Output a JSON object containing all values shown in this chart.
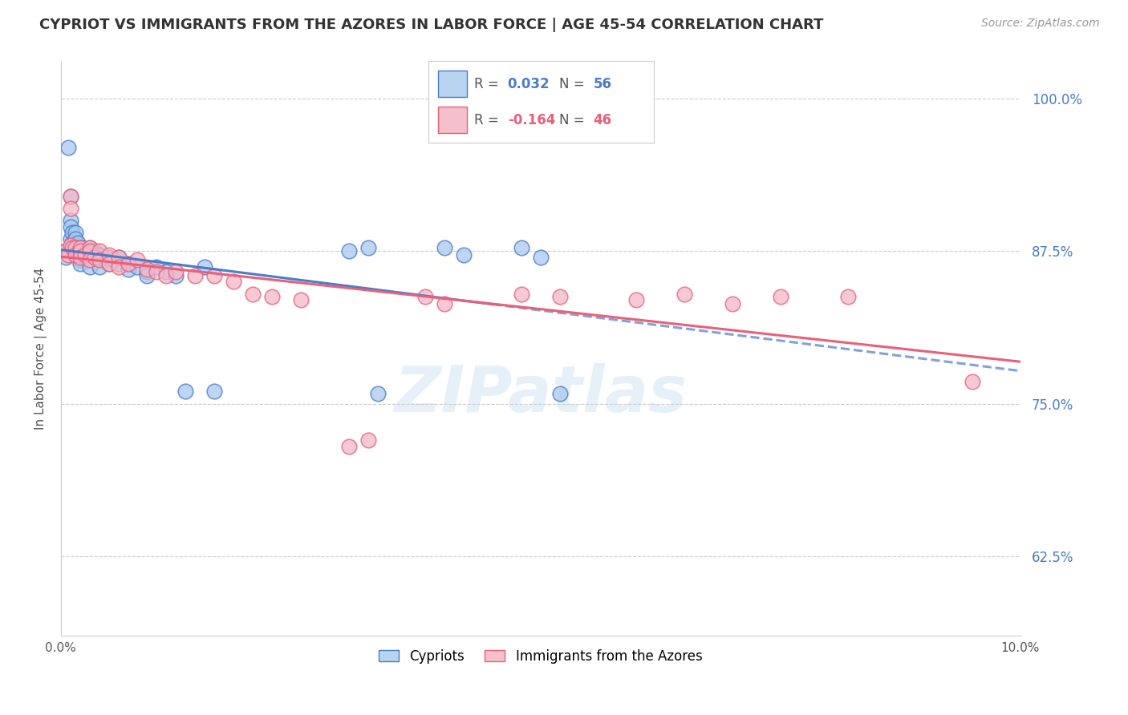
{
  "title": "CYPRIOT VS IMMIGRANTS FROM THE AZORES IN LABOR FORCE | AGE 45-54 CORRELATION CHART",
  "source_text": "Source: ZipAtlas.com",
  "ylabel": "In Labor Force | Age 45-54",
  "x_min": 0.0,
  "x_max": 0.1,
  "y_min": 0.56,
  "y_max": 1.03,
  "y_ticks": [
    0.625,
    0.75,
    0.875,
    1.0
  ],
  "y_tick_labels": [
    "62.5%",
    "75.0%",
    "87.5%",
    "100.0%"
  ],
  "x_ticks": [
    0.0,
    0.02,
    0.04,
    0.06,
    0.08,
    0.1
  ],
  "x_tick_labels": [
    "0.0%",
    "",
    "",
    "",
    "",
    "10.0%"
  ],
  "blue_color": "#a8c8f0",
  "pink_color": "#f5b8c8",
  "trend_blue": "#4a7cc7",
  "trend_pink": "#e8607a",
  "watermark": "ZIPatlas",
  "cypriots_x": [
    0.0005,
    0.0005,
    0.0008,
    0.001,
    0.001,
    0.001,
    0.001,
    0.0012,
    0.0012,
    0.0015,
    0.0015,
    0.0015,
    0.0018,
    0.002,
    0.002,
    0.002,
    0.002,
    0.002,
    0.0022,
    0.0025,
    0.0025,
    0.003,
    0.003,
    0.003,
    0.003,
    0.003,
    0.0035,
    0.0035,
    0.004,
    0.004,
    0.004,
    0.0045,
    0.005,
    0.005,
    0.0055,
    0.006,
    0.006,
    0.007,
    0.007,
    0.008,
    0.009,
    0.009,
    0.01,
    0.011,
    0.012,
    0.013,
    0.015,
    0.016,
    0.03,
    0.032,
    0.033,
    0.04,
    0.042,
    0.048,
    0.05,
    0.052
  ],
  "cypriots_y": [
    0.875,
    0.87,
    0.96,
    0.92,
    0.9,
    0.895,
    0.885,
    0.89,
    0.882,
    0.89,
    0.885,
    0.878,
    0.882,
    0.878,
    0.875,
    0.872,
    0.868,
    0.865,
    0.878,
    0.875,
    0.87,
    0.878,
    0.875,
    0.872,
    0.868,
    0.862,
    0.875,
    0.87,
    0.872,
    0.868,
    0.862,
    0.868,
    0.87,
    0.865,
    0.868,
    0.87,
    0.865,
    0.865,
    0.86,
    0.862,
    0.858,
    0.855,
    0.862,
    0.858,
    0.855,
    0.76,
    0.862,
    0.76,
    0.875,
    0.878,
    0.758,
    0.878,
    0.872,
    0.878,
    0.87,
    0.758
  ],
  "azores_x": [
    0.0005,
    0.0008,
    0.001,
    0.001,
    0.001,
    0.0012,
    0.0015,
    0.0015,
    0.002,
    0.002,
    0.002,
    0.0025,
    0.003,
    0.003,
    0.003,
    0.0035,
    0.004,
    0.004,
    0.005,
    0.005,
    0.006,
    0.006,
    0.007,
    0.008,
    0.009,
    0.01,
    0.011,
    0.012,
    0.014,
    0.016,
    0.018,
    0.02,
    0.022,
    0.025,
    0.03,
    0.032,
    0.038,
    0.04,
    0.048,
    0.052,
    0.06,
    0.065,
    0.07,
    0.075,
    0.082,
    0.095
  ],
  "azores_y": [
    0.875,
    0.872,
    0.92,
    0.91,
    0.88,
    0.878,
    0.878,
    0.872,
    0.878,
    0.875,
    0.87,
    0.872,
    0.878,
    0.875,
    0.868,
    0.87,
    0.875,
    0.868,
    0.872,
    0.865,
    0.87,
    0.862,
    0.865,
    0.868,
    0.86,
    0.858,
    0.855,
    0.858,
    0.855,
    0.855,
    0.85,
    0.84,
    0.838,
    0.835,
    0.715,
    0.72,
    0.838,
    0.832,
    0.84,
    0.838,
    0.835,
    0.84,
    0.832,
    0.838,
    0.838,
    0.768
  ]
}
